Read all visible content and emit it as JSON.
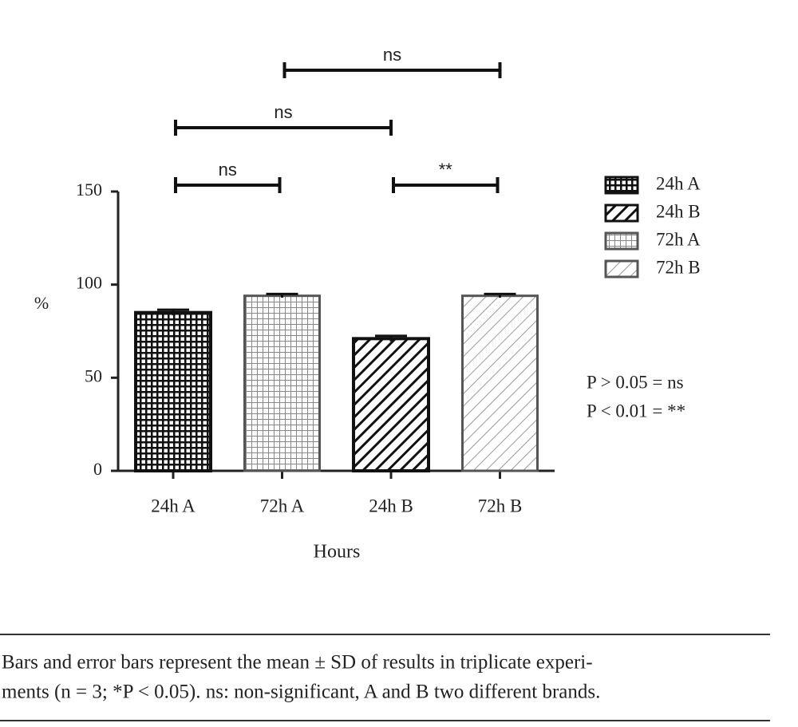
{
  "chart_data": {
    "type": "bar",
    "categories": [
      "24h A",
      "72h A",
      "24h B",
      "72h B"
    ],
    "values": [
      85,
      94,
      71,
      94
    ],
    "errors": [
      1.5,
      1,
      1.5,
      1
    ],
    "bar_styles": [
      "grid-dark",
      "grid-light",
      "diag-dark",
      "diag-light"
    ],
    "ylabel": "%",
    "xlabel": "Hours",
    "ylim": [
      0,
      150
    ],
    "yticks": [
      0,
      50,
      100,
      150
    ],
    "legend": [
      {
        "label": "24h A",
        "style": "grid-dark"
      },
      {
        "label": "24h B",
        "style": "diag-dark"
      },
      {
        "label": "72h A",
        "style": "grid-light"
      },
      {
        "label": "72h B",
        "style": "diag-light"
      }
    ],
    "brackets": [
      {
        "from": 0,
        "to": 1,
        "label": "ns"
      },
      {
        "from": 2,
        "to": 3,
        "label": "**"
      },
      {
        "from": 0,
        "to": 2,
        "label": "ns"
      },
      {
        "from": 1,
        "to": 3,
        "label": "ns"
      }
    ],
    "annotations": [
      "P > 0.05 = ns",
      "P < 0.01 = **"
    ]
  },
  "caption": {
    "lines": [
      "Bars and error bars represent the mean ± SD of results in triplicate experi-",
      "ments (n = 3; *P < 0.05). ns: non-significant, A and B two different brands."
    ]
  }
}
